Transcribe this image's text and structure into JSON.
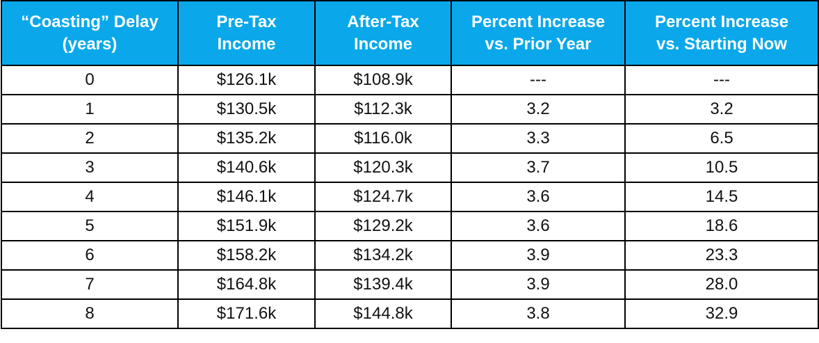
{
  "table": {
    "header": [
      [
        "“Coasting” Delay",
        "(years)"
      ],
      [
        "Pre-Tax",
        "Income"
      ],
      [
        "After-Tax",
        "Income"
      ],
      [
        "Percent Increase",
        "vs. Prior Year"
      ],
      [
        "Percent Increase",
        "vs. Starting Now"
      ]
    ],
    "rows": [
      [
        "0",
        "$126.1k",
        "$108.9k",
        "---",
        "---"
      ],
      [
        "1",
        "$130.5k",
        "$112.3k",
        "3.2",
        "3.2"
      ],
      [
        "2",
        "$135.2k",
        "$116.0k",
        "3.3",
        "6.5"
      ],
      [
        "3",
        "$140.6k",
        "$120.3k",
        "3.7",
        "10.5"
      ],
      [
        "4",
        "$146.1k",
        "$124.7k",
        "3.6",
        "14.5"
      ],
      [
        "5",
        "$151.9k",
        "$129.2k",
        "3.6",
        "18.6"
      ],
      [
        "6",
        "$158.2k",
        "$134.2k",
        "3.9",
        "23.3"
      ],
      [
        "7",
        "$164.8k",
        "$139.4k",
        "3.9",
        "28.0"
      ],
      [
        "8",
        "$171.6k",
        "$144.8k",
        "3.8",
        "32.9"
      ]
    ]
  }
}
